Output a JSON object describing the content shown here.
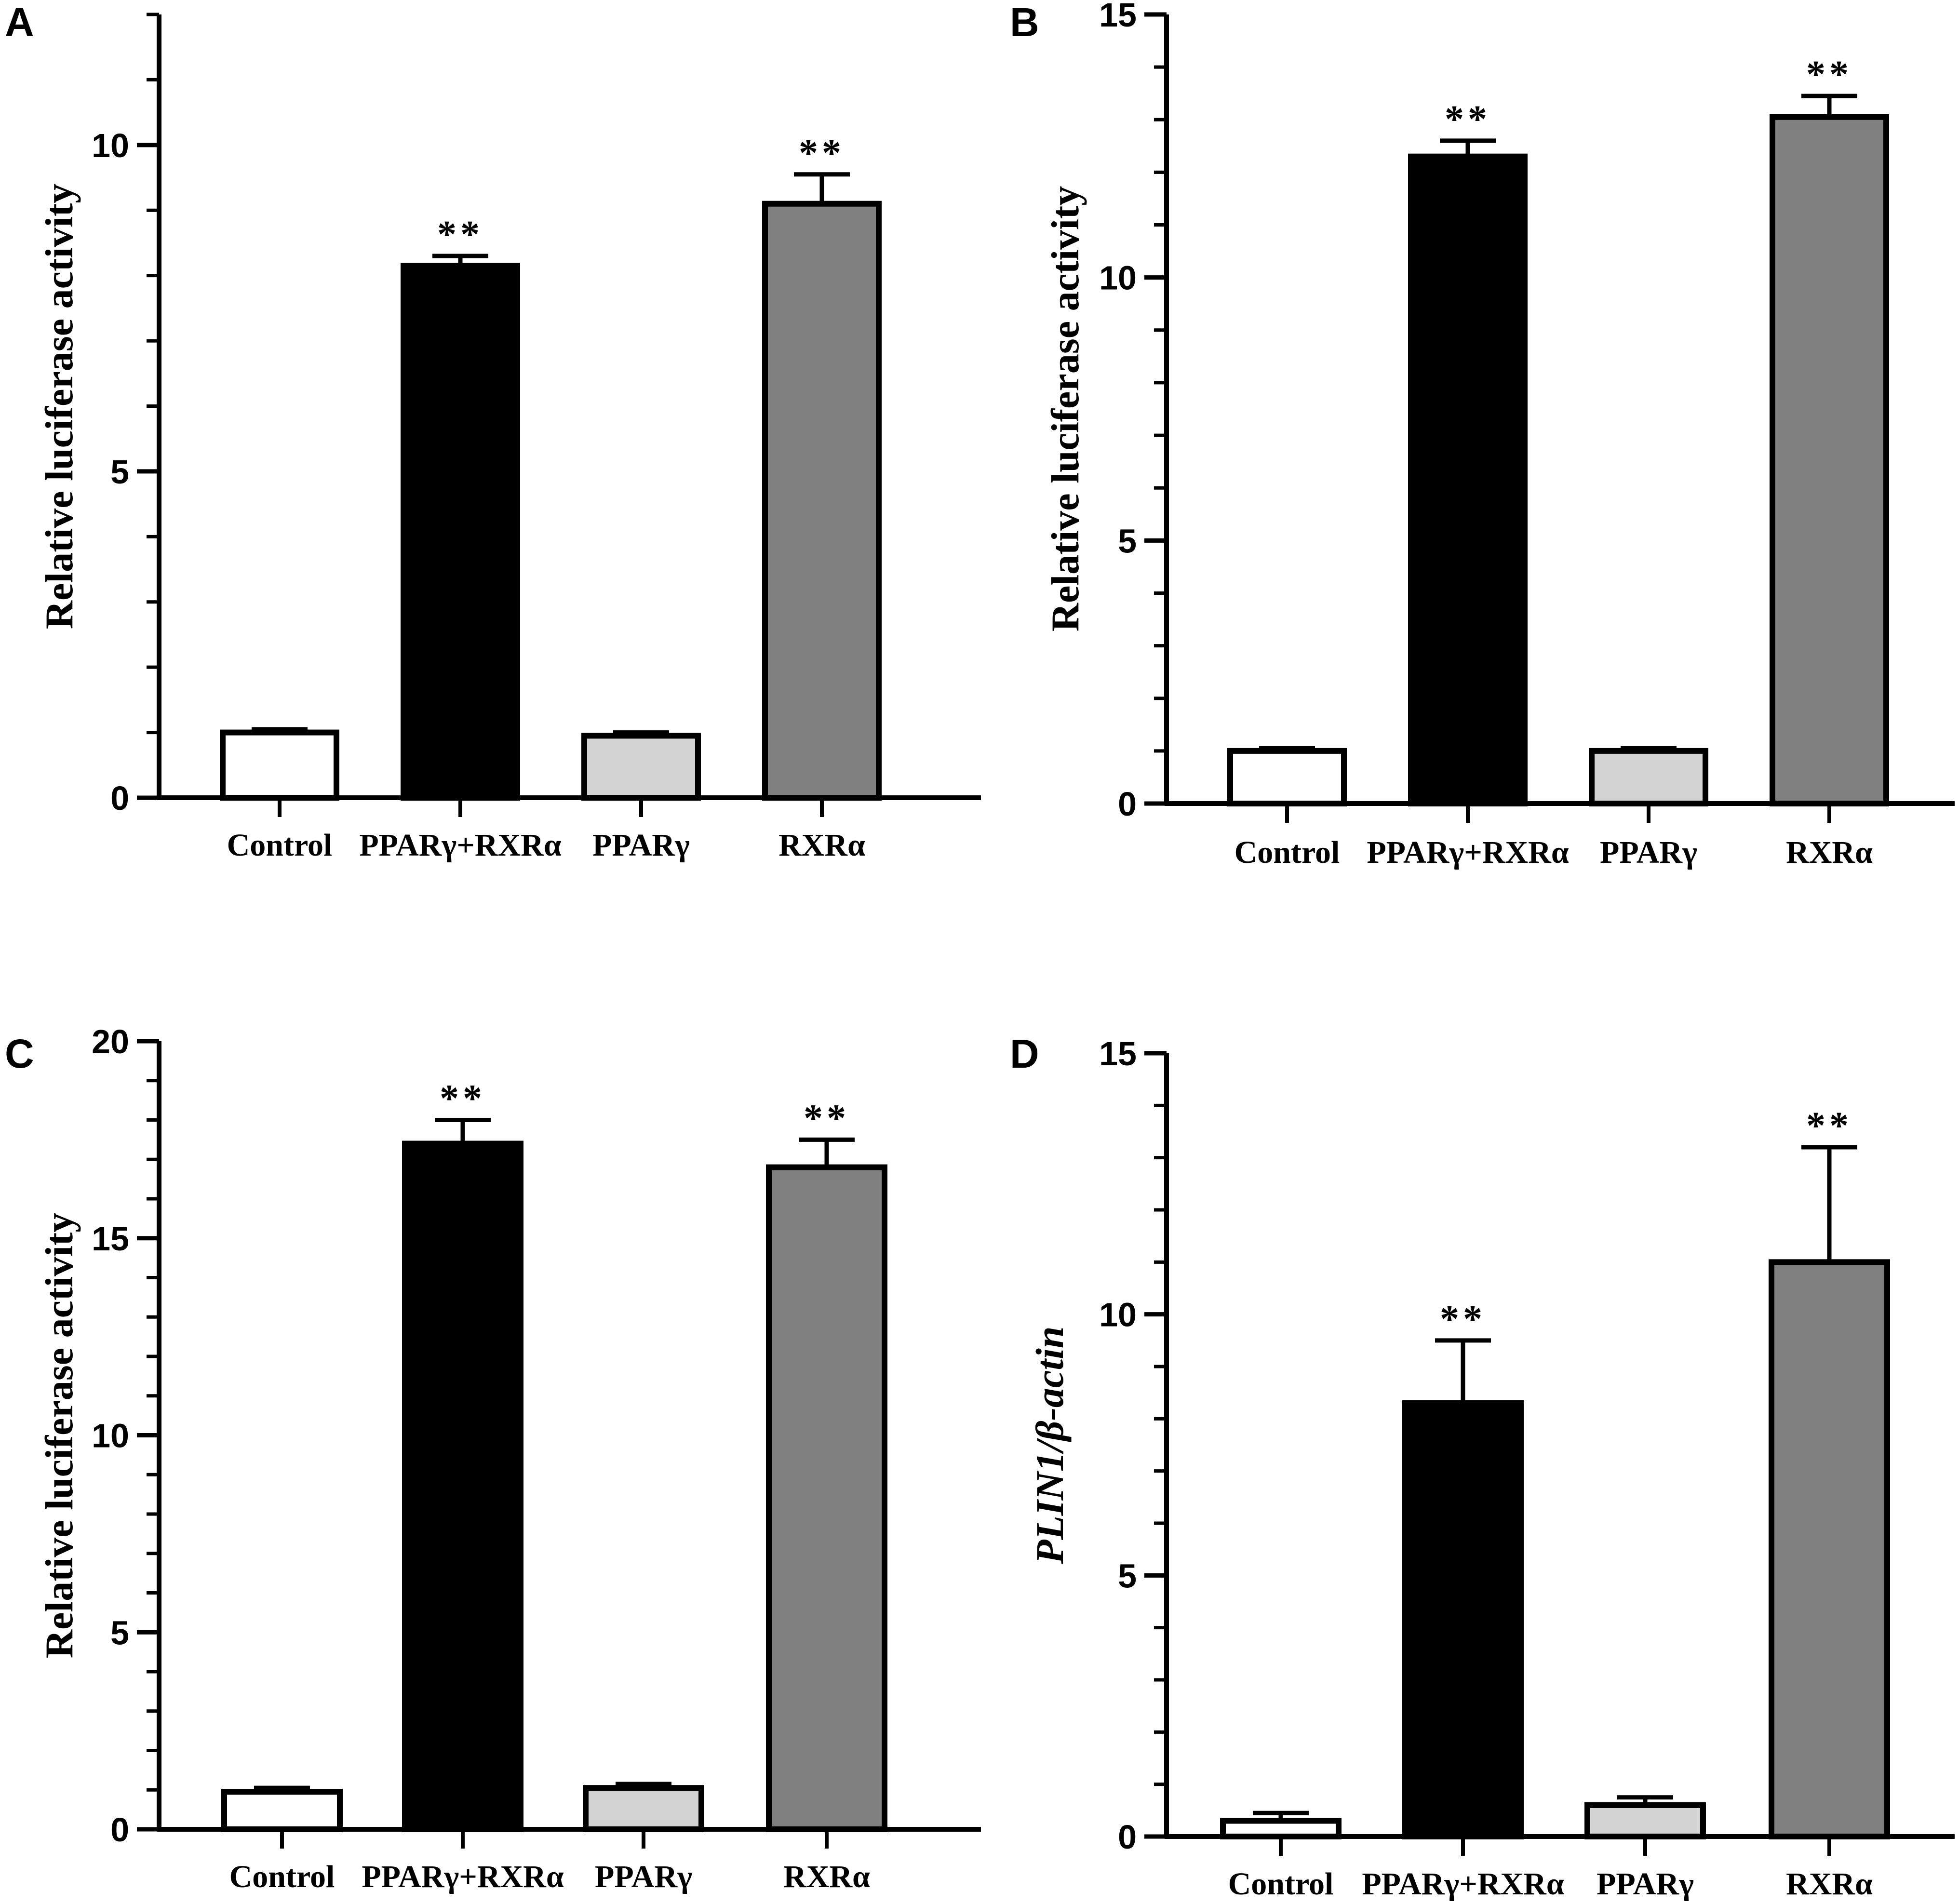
{
  "chart_data": [
    {
      "panel": "A",
      "type": "bar",
      "categories": [
        "Control",
        "PPARγ+RXRα",
        "PPARγ",
        "RXRα"
      ],
      "values": [
        1.0,
        8.15,
        0.95,
        9.1
      ],
      "errors": [
        0.05,
        0.15,
        0.05,
        0.45
      ],
      "significance": [
        "",
        "**",
        "",
        "**"
      ],
      "colors": [
        "#ffffff",
        "#000000",
        "#d3d3d3",
        "#808080"
      ],
      "ylabel": "Relative luciferase activity",
      "ylabel_italic": false,
      "ylim": [
        0,
        12
      ],
      "yticks": [
        0,
        5,
        10
      ],
      "ytick_labels": [
        "0",
        "5",
        "10"
      ],
      "minor_step": 1
    },
    {
      "panel": "B",
      "type": "bar",
      "categories": [
        "Control",
        "PPARγ+RXRα",
        "PPARγ",
        "RXRα"
      ],
      "values": [
        1.0,
        12.3,
        1.0,
        13.05
      ],
      "errors": [
        0.05,
        0.3,
        0.05,
        0.4
      ],
      "significance": [
        "",
        "**",
        "",
        "**"
      ],
      "colors": [
        "#ffffff",
        "#000000",
        "#d3d3d3",
        "#808080"
      ],
      "ylabel": "Relative luciferase activity",
      "ylabel_italic": false,
      "ylim": [
        0,
        15
      ],
      "yticks": [
        0,
        5,
        10,
        15
      ],
      "ytick_labels": [
        "0",
        "5",
        "10",
        "15"
      ],
      "minor_step": 1
    },
    {
      "panel": "C",
      "type": "bar",
      "categories": [
        "Control",
        "PPARγ+RXRα",
        "PPARγ",
        "RXRα"
      ],
      "values": [
        0.95,
        17.4,
        1.05,
        16.8
      ],
      "errors": [
        0.1,
        0.6,
        0.1,
        0.7
      ],
      "significance": [
        "",
        "**",
        "",
        "**"
      ],
      "colors": [
        "#ffffff",
        "#000000",
        "#d3d3d3",
        "#808080"
      ],
      "ylabel": "Relative luciferase activity",
      "ylabel_italic": false,
      "ylim": [
        0,
        20
      ],
      "yticks": [
        0,
        5,
        10,
        15,
        20
      ],
      "ytick_labels": [
        "0",
        "5",
        "10",
        "15",
        "20"
      ],
      "minor_step": 1
    },
    {
      "panel": "D",
      "type": "bar",
      "categories": [
        "Control",
        "PPARγ+RXRα",
        "PPARγ",
        "RXRα"
      ],
      "values": [
        0.3,
        8.3,
        0.6,
        11.0
      ],
      "errors": [
        0.15,
        1.2,
        0.15,
        2.2
      ],
      "significance": [
        "",
        "**",
        "",
        "**"
      ],
      "colors": [
        "#ffffff",
        "#000000",
        "#d3d3d3",
        "#808080"
      ],
      "ylabel": "PLIN1/β-actin",
      "ylabel_italic": true,
      "ylim": [
        0,
        15
      ],
      "yticks": [
        0,
        5,
        10,
        15
      ],
      "ytick_labels": [
        "0",
        "5",
        "10",
        "15"
      ],
      "minor_step": 1
    }
  ]
}
